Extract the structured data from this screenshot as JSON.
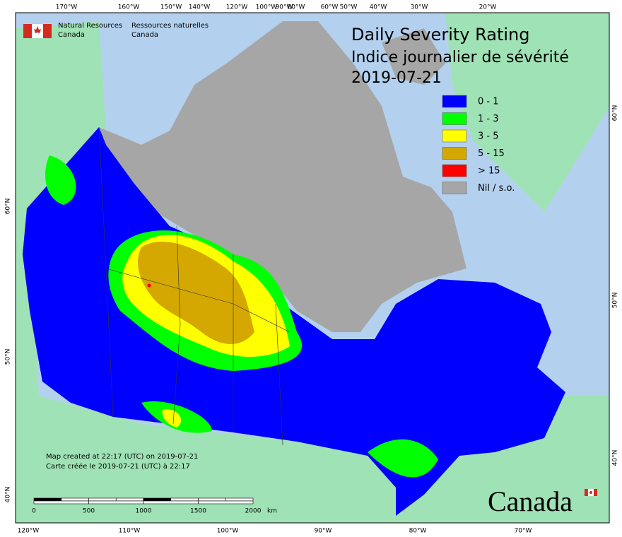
{
  "header": {
    "org_en": [
      "Natural Resources",
      "Canada"
    ],
    "org_fr": [
      "Ressources naturelles",
      "Canada"
    ]
  },
  "title": [
    "Daily Severity Rating",
    "Indice journalier de sévérité",
    "2019-07-21"
  ],
  "legend": [
    {
      "label": "0 - 1",
      "color": "#0000ff"
    },
    {
      "label": "1 - 3",
      "color": "#00ff00"
    },
    {
      "label": "3 - 5",
      "color": "#ffff00"
    },
    {
      "label": "5 - 15",
      "color": "#d4a800"
    },
    {
      "label": "> 15",
      "color": "#ff0000"
    },
    {
      "label": "Nil / s.o.",
      "color": "#a6a6a6"
    }
  ],
  "graticule": {
    "top": [
      "170°W",
      "160°W",
      "150°W",
      "140°W",
      "120°W",
      "100°W",
      "90°W",
      "80°W",
      "60°W",
      "50°W",
      "40°W",
      "30°W",
      "20°W"
    ],
    "bottom": [
      "120°W",
      "110°W",
      "100°W",
      "90°W",
      "80°W",
      "70°W"
    ],
    "left": [
      "60°N",
      "50°N",
      "40°N"
    ],
    "right": [
      "60°N",
      "50°N",
      "40°N"
    ]
  },
  "footer": [
    "Map created at 22:17 (UTC) on 2019-07-21",
    "Carte créée le 2019-07-21 (UTC) à 22:17"
  ],
  "scale": {
    "labels": [
      "0",
      "500",
      "1000",
      "1500",
      "2000"
    ],
    "unit": "km"
  },
  "wordmark": "Canada"
}
